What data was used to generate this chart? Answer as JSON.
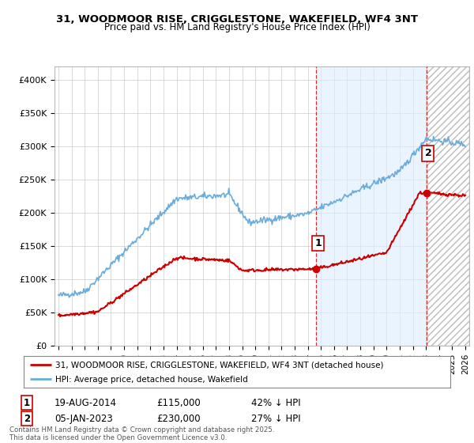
{
  "title_line1": "31, WOODMOOR RISE, CRIGGLESTONE, WAKEFIELD, WF4 3NT",
  "title_line2": "Price paid vs. HM Land Registry's House Price Index (HPI)",
  "ylim": [
    0,
    420000
  ],
  "yticks": [
    0,
    50000,
    100000,
    150000,
    200000,
    250000,
    300000,
    350000,
    400000
  ],
  "ytick_labels": [
    "£0",
    "£50K",
    "£100K",
    "£150K",
    "£200K",
    "£250K",
    "£300K",
    "£350K",
    "£400K"
  ],
  "hpi_color": "#6aaddc",
  "price_color": "#cc0000",
  "marker1_date_x": 2014.64,
  "marker1_y": 115000,
  "marker2_date_x": 2023.02,
  "marker2_y": 230000,
  "vline1_x": 2014.64,
  "vline2_x": 2023.02,
  "shade_color": "#ddeeff",
  "legend_label1": "31, WOODMOOR RISE, CRIGGLESTONE, WAKEFIELD, WF4 3NT (detached house)",
  "legend_label2": "HPI: Average price, detached house, Wakefield",
  "note1_date": "19-AUG-2014",
  "note1_price": "£115,000",
  "note1_hpi": "42% ↓ HPI",
  "note2_date": "05-JAN-2023",
  "note2_price": "£230,000",
  "note2_hpi": "27% ↓ HPI",
  "footer": "Contains HM Land Registry data © Crown copyright and database right 2025.\nThis data is licensed under the Open Government Licence v3.0.",
  "background_color": "#ffffff",
  "grid_color": "#cccccc",
  "xlim_left": 1994.7,
  "xlim_right": 2026.3
}
